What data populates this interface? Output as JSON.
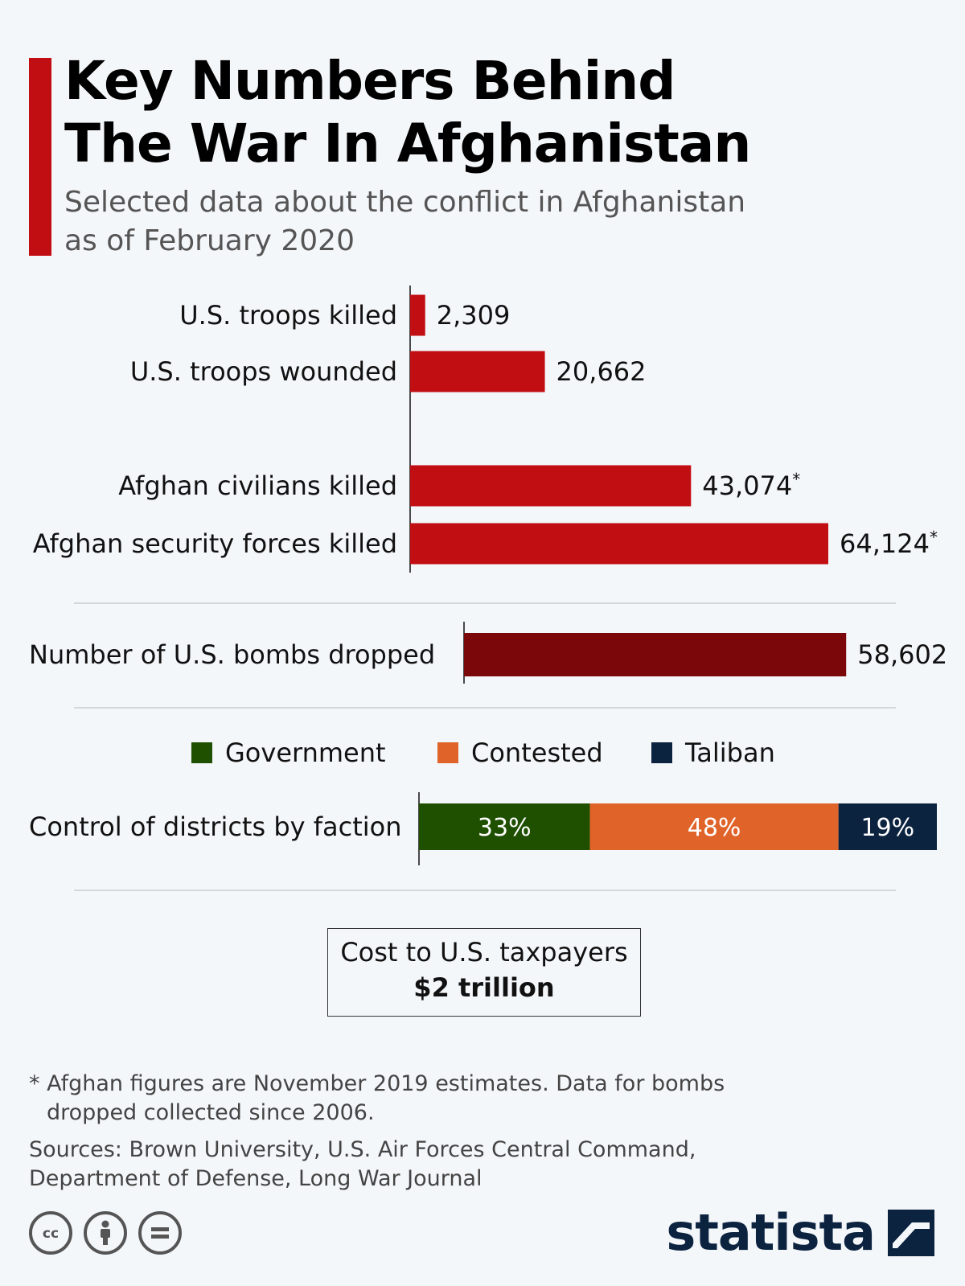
{
  "title_lines": [
    "Key Numbers Behind",
    "The War In Afghanistan"
  ],
  "subtitle_lines": [
    "Selected data about the conflict in Afghanistan",
    "as of February 2020"
  ],
  "chart_data": {
    "type": "bar",
    "groups": [
      {
        "categories": [
          "U.S. troops killed",
          "U.S. troops wounded"
        ],
        "values": [
          2309,
          20662
        ],
        "value_labels": [
          "2,309",
          "20,662"
        ]
      },
      {
        "categories": [
          "Afghan civilians killed",
          "Afghan security forces killed"
        ],
        "values": [
          43074,
          64124
        ],
        "value_labels": [
          "43,074*",
          "64,124*"
        ]
      },
      {
        "categories": [
          "Number of U.S. bombs dropped"
        ],
        "values": [
          58602
        ],
        "value_labels": [
          "58,602"
        ]
      }
    ],
    "stacked": {
      "category": "Control of districts by faction",
      "legend": [
        "Government",
        "Contested",
        "Taliban"
      ],
      "values": [
        33,
        48,
        19
      ],
      "value_labels": [
        "33%",
        "48%",
        "19%"
      ],
      "colors": [
        "#1e5000",
        "#e0632a",
        "#0c2340"
      ]
    },
    "colors": {
      "casualties": "#c10e13",
      "bombs": "#7c070a"
    }
  },
  "cost": {
    "label": "Cost to U.S. taxpayers",
    "value": "$2 trillion"
  },
  "footnote_lines": [
    "* Afghan figures are November 2019 estimates. Data for bombs",
    "dropped collected since 2006."
  ],
  "sources_lines": [
    "Sources: Brown University, U.S. Air Forces Central Command,",
    "Department of Defense, Long War Journal"
  ],
  "license_icons": [
    "cc-icon",
    "attribution-icon",
    "no-derivatives-icon"
  ],
  "brand": "statista"
}
